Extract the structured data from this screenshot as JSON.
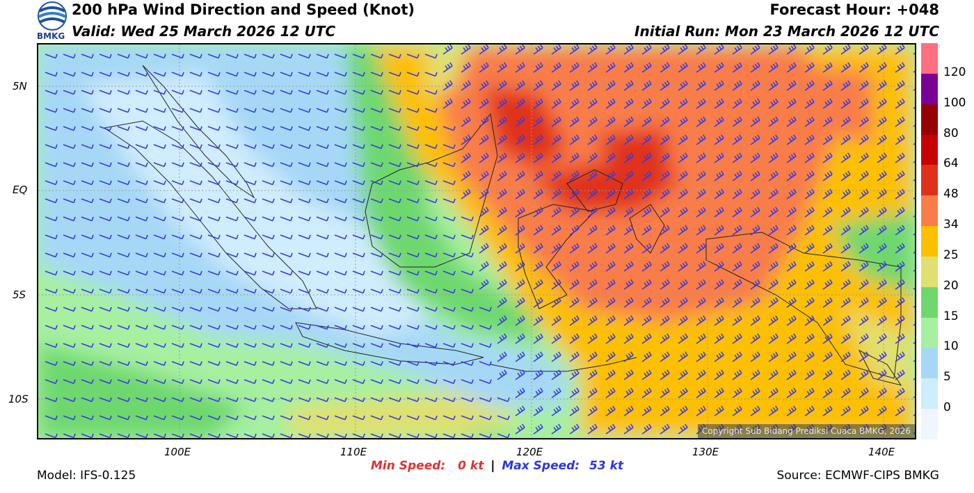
{
  "header": {
    "title": "200 hPa Wind Direction and Speed (Knot)",
    "valid": "Valid: Wed 25 March 2026 12 UTC",
    "forecast_hour": "Forecast Hour: +048",
    "initial_run": "Initial Run: Mon 23 March 2026 12 UTC",
    "logo_text": "BMKG"
  },
  "map": {
    "lat_labels": [
      "5N",
      "EQ",
      "5S",
      "10S"
    ],
    "lon_labels": [
      "100E",
      "110E",
      "120E",
      "130E",
      "140E"
    ],
    "copyright": "Copyright Sub Bidang Prediksi Cuaca BMKG, 2026"
  },
  "colorbar": {
    "levels": [
      "0",
      "5",
      "10",
      "15",
      "20",
      "25",
      "34",
      "48",
      "64",
      "80",
      "100",
      "120"
    ],
    "colors": [
      "#f0f6ff",
      "#d0ecff",
      "#a6d8f6",
      "#a6f0a0",
      "#6ed86e",
      "#e0e070",
      "#fcc000",
      "#f97d48",
      "#e0301a",
      "#c80000",
      "#960000",
      "#7a0096",
      "#ff6f7f"
    ]
  },
  "footer": {
    "model": "Model: IFS-0.125",
    "min_label": "Min Speed:",
    "min_value": "0 kt",
    "separator": "|",
    "max_label": "Max Speed:",
    "max_value": "53 kt",
    "source": "Source: ECMWF-CIPS BMKG"
  }
}
